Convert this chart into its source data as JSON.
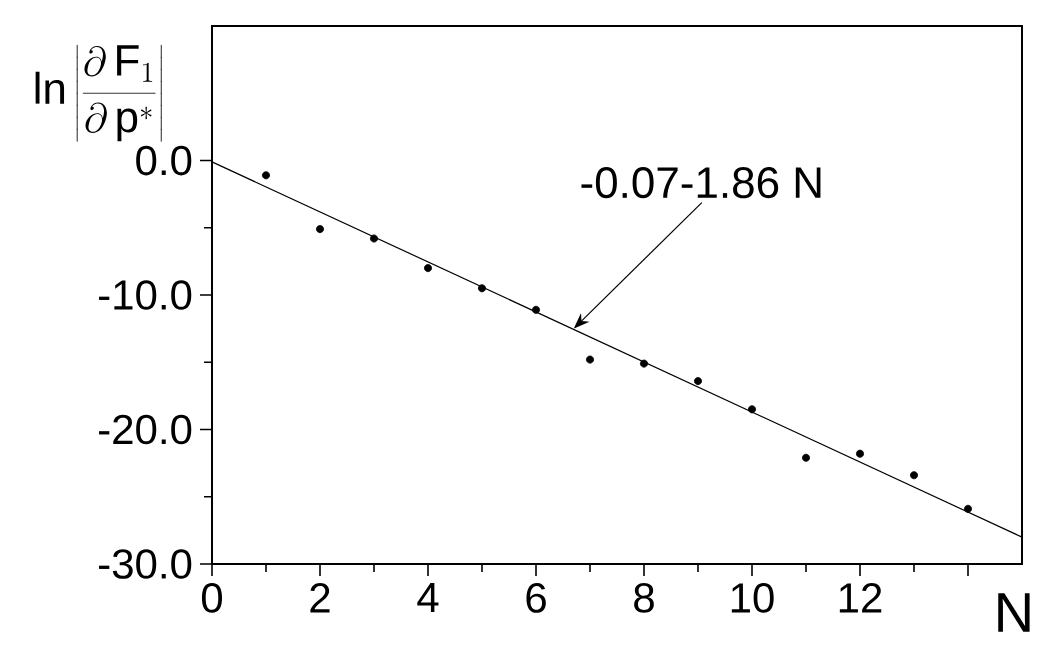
{
  "chart_data": {
    "type": "scatter",
    "ylabel": "\\mathsf{ln}\\left|\\frac{\\partial\\,\\mathsf{F}_1}{\\partial\\,\\mathsf{p}^*}\\right|",
    "xlabel": "N",
    "xlim": [
      0,
      15
    ],
    "ylim": [
      -30,
      10
    ],
    "xticks": [
      0,
      2,
      4,
      6,
      8,
      10,
      12,
      {
        "value": 14,
        "label": null
      }
    ],
    "yticks": [
      {
        "value": -30,
        "label": "-30.0"
      },
      {
        "value": -20,
        "label": "-20.0"
      },
      {
        "value": -10,
        "label": "-10.0"
      },
      {
        "value": 0,
        "label": "0.0"
      }
    ],
    "grid": false,
    "series": [
      {
        "marker": "circle",
        "color": "#000000",
        "x": [
          1,
          2,
          3,
          4,
          5,
          6,
          7,
          8,
          9,
          10,
          11,
          12,
          13,
          14
        ],
        "values": [
          -1.1,
          -5.1,
          -5.8,
          -8.0,
          -9.5,
          -11.1,
          -14.8,
          -15.1,
          -16.4,
          -18.5,
          -22.1,
          -21.8,
          -23.4,
          -25.9
        ]
      },
      {
        "type": "line",
        "marker": "none",
        "line_style": "solid",
        "color": "#000000",
        "x": [
          0,
          15
        ],
        "values": [
          -0.1,
          -28.0
        ]
      }
    ],
    "annotations": [
      {
        "text": "-0.07-1.86 N",
        "x": 6.7,
        "y": -12.5
      }
    ]
  }
}
